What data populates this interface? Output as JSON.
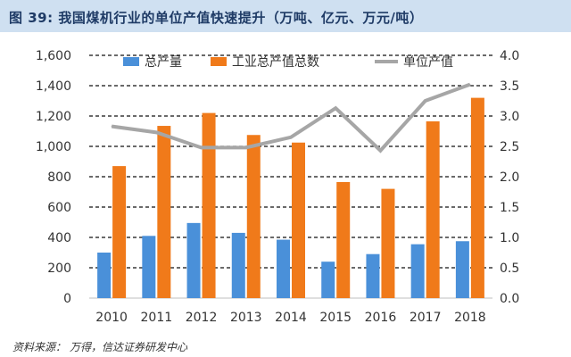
{
  "header": {
    "figure_label": "图 39:",
    "title": "我国煤机行业的单位产值快速提升（万吨、亿元、万元/吨）"
  },
  "source": {
    "label": "资料来源：",
    "text": "万得，信达证券研发中心"
  },
  "colors": {
    "bar_output": "#4a90d9",
    "bar_value": "#f07a1a",
    "line_unit": "#a6a6a6",
    "title_bg": "#cfe0f1"
  },
  "chart_data": {
    "type": "bar",
    "title": "我国煤机行业的单位产值快速提升（万吨、亿元、万元/吨）",
    "categories": [
      "2010",
      "2011",
      "2012",
      "2013",
      "2014",
      "2015",
      "2016",
      "2017",
      "2018"
    ],
    "series": [
      {
        "name": "总产量",
        "type": "bar",
        "axis": "left",
        "values": [
          300,
          410,
          495,
          430,
          385,
          240,
          290,
          355,
          375
        ]
      },
      {
        "name": "工业总产值总数",
        "type": "bar",
        "axis": "left",
        "values": [
          870,
          1135,
          1220,
          1075,
          1025,
          765,
          720,
          1165,
          1320
        ]
      },
      {
        "name": "单位产值",
        "type": "line",
        "axis": "right",
        "values": [
          2.83,
          2.73,
          2.48,
          2.48,
          2.65,
          3.13,
          2.43,
          3.25,
          3.52
        ]
      }
    ],
    "left_axis": {
      "ylim": [
        0,
        1600
      ],
      "ticks": [
        "0",
        "200",
        "400",
        "600",
        "800",
        "1,000",
        "1,200",
        "1,400",
        "1,600"
      ]
    },
    "right_axis": {
      "ylim": [
        0,
        4.0
      ],
      "ticks": [
        "0.0",
        "0.5",
        "1.0",
        "1.5",
        "2.0",
        "2.5",
        "3.0",
        "3.5",
        "4.0"
      ]
    },
    "legend_position": "top",
    "grid": "dashed-horizontal"
  }
}
